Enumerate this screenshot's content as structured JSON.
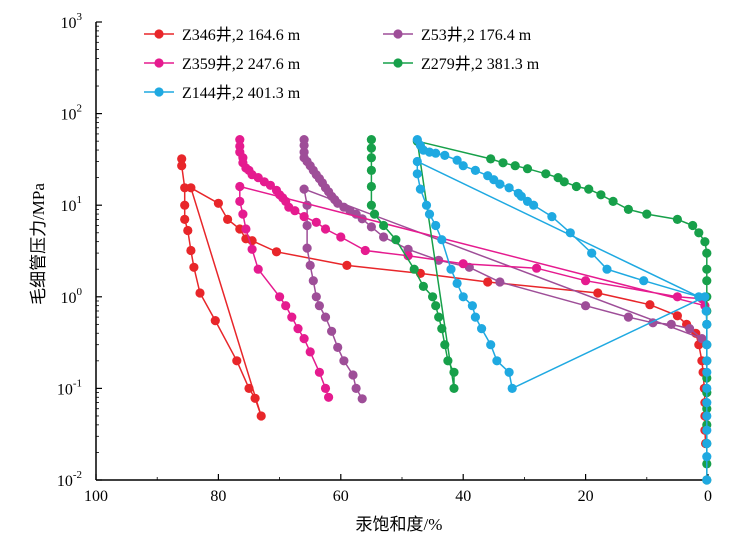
{
  "chart_data": {
    "type": "scatter",
    "xlabel": "汞饱和度/%",
    "ylabel": "毛细管压力/MPa",
    "xlim": [
      100,
      0
    ],
    "ylim": [
      0.01,
      1000
    ],
    "yscale": "log",
    "x_reversed": true,
    "xticks": [
      "100",
      "80",
      "60",
      "40",
      "20",
      "0"
    ],
    "yticks": [
      {
        "base": "10",
        "exp": "-2"
      },
      {
        "base": "10",
        "exp": "-1"
      },
      {
        "base": "10",
        "exp": "0"
      },
      {
        "base": "10",
        "exp": "1"
      },
      {
        "base": "10",
        "exp": "2"
      },
      {
        "base": "10",
        "exp": "3"
      }
    ],
    "legend_position": "top",
    "series": [
      {
        "name": "Z346井,2 164.6 m",
        "color": "#e8262a",
        "points": [
          [
            86.0,
            32
          ],
          [
            86.0,
            27
          ],
          [
            85.5,
            15.5
          ],
          [
            85.5,
            10
          ],
          [
            85.5,
            7
          ],
          [
            85.0,
            5.3
          ],
          [
            84.5,
            3.2
          ],
          [
            84.0,
            2.1
          ],
          [
            83.0,
            1.1
          ],
          [
            80.5,
            0.55
          ],
          [
            77.0,
            0.2
          ],
          [
            75.0,
            0.1
          ],
          [
            74.0,
            0.078
          ],
          [
            73.0,
            0.05
          ],
          [
            84.5,
            15.5
          ],
          [
            80.0,
            10.5
          ],
          [
            78.5,
            7
          ],
          [
            76.5,
            5.5
          ],
          [
            75.5,
            4.3
          ],
          [
            74.5,
            4.1
          ],
          [
            70.5,
            3.1
          ],
          [
            59.0,
            2.2
          ],
          [
            47.0,
            1.8
          ],
          [
            36.0,
            1.45
          ],
          [
            18.0,
            1.1
          ],
          [
            9.5,
            0.82
          ],
          [
            5.0,
            0.62
          ],
          [
            3.5,
            0.5
          ],
          [
            2.0,
            0.4
          ],
          [
            1.5,
            0.3
          ],
          [
            1.0,
            0.2
          ],
          [
            0.8,
            0.15
          ],
          [
            0.6,
            0.1
          ],
          [
            0.5,
            0.07
          ],
          [
            0.5,
            0.05
          ],
          [
            0.5,
            0.035
          ],
          [
            0.4,
            0.025
          ]
        ]
      },
      {
        "name": "Z53井,2 176.4 m",
        "color": "#9e4e98",
        "points": [
          [
            66.0,
            52
          ],
          [
            66.0,
            45
          ],
          [
            66.0,
            38
          ],
          [
            66.0,
            33
          ],
          [
            65.5,
            30
          ],
          [
            65.0,
            27
          ],
          [
            64.5,
            24
          ],
          [
            64.0,
            21.5
          ],
          [
            63.5,
            19.5
          ],
          [
            63.0,
            17.5
          ],
          [
            62.5,
            15.5
          ],
          [
            62.0,
            14
          ],
          [
            61.5,
            12.5
          ],
          [
            61.0,
            11.5
          ],
          [
            60.5,
            10.5
          ],
          [
            59.5,
            9.5
          ],
          [
            58.5,
            8.7
          ],
          [
            57.5,
            8
          ],
          [
            56.5,
            7.1
          ],
          [
            55.0,
            5.8
          ],
          [
            53.0,
            4.5
          ],
          [
            49.0,
            3.3
          ],
          [
            44.0,
            2.5
          ],
          [
            39.0,
            2.1
          ],
          [
            34.0,
            1.45
          ],
          [
            20.0,
            0.8
          ],
          [
            13.0,
            0.6
          ],
          [
            9.0,
            0.52
          ],
          [
            6.0,
            0.5
          ],
          [
            3.0,
            0.45
          ],
          [
            1.0,
            0.35
          ],
          [
            66.0,
            15
          ],
          [
            65.5,
            10
          ],
          [
            65.5,
            6
          ],
          [
            65.5,
            3.4
          ],
          [
            65.0,
            2.2
          ],
          [
            64.5,
            1.5
          ],
          [
            64.0,
            1.0
          ],
          [
            63.5,
            0.8
          ],
          [
            62.5,
            0.6
          ],
          [
            61.5,
            0.42
          ],
          [
            60.5,
            0.28
          ],
          [
            59.5,
            0.2
          ],
          [
            58.0,
            0.14
          ],
          [
            57.5,
            0.1
          ],
          [
            56.5,
            0.077
          ]
        ]
      },
      {
        "name": "Z359井,2 247.6 m",
        "color": "#e51b8f",
        "points": [
          [
            76.5,
            52
          ],
          [
            76.5,
            44
          ],
          [
            76.5,
            38
          ],
          [
            76.0,
            33
          ],
          [
            76.0,
            29
          ],
          [
            75.5,
            25.5
          ],
          [
            75.0,
            24
          ],
          [
            74.5,
            21.5
          ],
          [
            73.5,
            20
          ],
          [
            72.5,
            18
          ],
          [
            71.5,
            16.5
          ],
          [
            70.5,
            14.5
          ],
          [
            70.0,
            13
          ],
          [
            69.5,
            12
          ],
          [
            69.0,
            11
          ],
          [
            68.5,
            9.5
          ],
          [
            67.5,
            8.7
          ],
          [
            66.0,
            7.5
          ],
          [
            64.0,
            6.5
          ],
          [
            62.5,
            5.5
          ],
          [
            60.0,
            4.5
          ],
          [
            56.0,
            3.2
          ],
          [
            49.0,
            2.8
          ],
          [
            40.0,
            2.3
          ],
          [
            28.0,
            2.05
          ],
          [
            20.0,
            1.5
          ],
          [
            5.0,
            1.0
          ],
          [
            1.0,
            0.95
          ],
          [
            0.5,
            0.8
          ],
          [
            76.5,
            16
          ],
          [
            76.5,
            11
          ],
          [
            76.0,
            8
          ],
          [
            75.5,
            5.5
          ],
          [
            74.5,
            3.3
          ],
          [
            73.5,
            2.0
          ],
          [
            70.0,
            1.0
          ],
          [
            69.0,
            0.8
          ],
          [
            68.0,
            0.6
          ],
          [
            67.0,
            0.45
          ],
          [
            66.0,
            0.35
          ],
          [
            65.0,
            0.25
          ],
          [
            63.5,
            0.15
          ],
          [
            62.5,
            0.1
          ],
          [
            62.0,
            0.08
          ]
        ]
      },
      {
        "name": "Z279井,2 381.3 m",
        "color": "#17a04a",
        "points": [
          [
            55.0,
            52
          ],
          [
            55.0,
            42
          ],
          [
            55.0,
            33
          ],
          [
            55.0,
            24
          ],
          [
            55.0,
            16
          ],
          [
            55.0,
            10
          ],
          [
            54.5,
            8
          ],
          [
            53.0,
            6
          ],
          [
            51.0,
            4.2
          ],
          [
            48.0,
            2.0
          ],
          [
            46.5,
            1.3
          ],
          [
            45.0,
            1.0
          ],
          [
            44.5,
            0.8
          ],
          [
            44.0,
            0.6
          ],
          [
            43.5,
            0.45
          ],
          [
            43.0,
            0.3
          ],
          [
            42.5,
            0.2
          ],
          [
            41.5,
            0.15
          ],
          [
            41.5,
            0.1
          ],
          [
            47.5,
            50
          ],
          [
            35.5,
            32
          ],
          [
            33.5,
            29
          ],
          [
            31.5,
            27
          ],
          [
            29.5,
            25
          ],
          [
            26.5,
            22
          ],
          [
            24.5,
            20
          ],
          [
            23.5,
            18
          ],
          [
            21.5,
            16
          ],
          [
            19.5,
            15
          ],
          [
            17.5,
            13
          ],
          [
            15.5,
            11
          ],
          [
            13.0,
            9
          ],
          [
            10.0,
            8
          ],
          [
            5.0,
            7
          ],
          [
            2.5,
            6
          ],
          [
            1.5,
            5
          ],
          [
            0.5,
            4
          ],
          [
            0.2,
            3.0
          ],
          [
            0.2,
            2.0
          ],
          [
            0.2,
            1.5
          ],
          [
            0.2,
            1.0
          ],
          [
            0.2,
            0.7
          ],
          [
            0.2,
            0.5
          ],
          [
            0.2,
            0.3
          ],
          [
            0.2,
            0.2
          ],
          [
            0.2,
            0.13
          ],
          [
            0.2,
            0.09
          ],
          [
            0.2,
            0.06
          ],
          [
            0.2,
            0.04
          ],
          [
            0.2,
            0.025
          ],
          [
            0.2,
            0.015
          ],
          [
            0.2,
            0.01
          ]
        ]
      },
      {
        "name": "Z144井,2 401.3 m",
        "color": "#1fa9e1",
        "points": [
          [
            47.5,
            52
          ],
          [
            47.0,
            45
          ],
          [
            46.5,
            40
          ],
          [
            45.5,
            38
          ],
          [
            44.5,
            37
          ],
          [
            43.0,
            35
          ],
          [
            41.0,
            31
          ],
          [
            40.0,
            27
          ],
          [
            38.0,
            24
          ],
          [
            36.0,
            21
          ],
          [
            35.0,
            19
          ],
          [
            34.0,
            17
          ],
          [
            32.5,
            15.5
          ],
          [
            31.0,
            13.5
          ],
          [
            30.5,
            12.5
          ],
          [
            29.5,
            11
          ],
          [
            28.5,
            10
          ],
          [
            25.5,
            7.5
          ],
          [
            22.5,
            5
          ],
          [
            19.0,
            3
          ],
          [
            16.5,
            2.0
          ],
          [
            10.5,
            1.5
          ],
          [
            1.5,
            1.0
          ],
          [
            47.5,
            30
          ],
          [
            47.5,
            22
          ],
          [
            47.0,
            15
          ],
          [
            46.0,
            10
          ],
          [
            45.5,
            8
          ],
          [
            44.5,
            6
          ],
          [
            43.5,
            4.2
          ],
          [
            42.0,
            2.0
          ],
          [
            41.0,
            1.4
          ],
          [
            40.0,
            1.0
          ],
          [
            38.5,
            0.8
          ],
          [
            38.0,
            0.6
          ],
          [
            37.0,
            0.45
          ],
          [
            35.5,
            0.3
          ],
          [
            34.5,
            0.2
          ],
          [
            32.5,
            0.15
          ],
          [
            32.0,
            0.1
          ],
          [
            0.5,
            1.0
          ],
          [
            0.3,
            0.7
          ],
          [
            0.2,
            0.5
          ],
          [
            0.2,
            0.3
          ],
          [
            0.2,
            0.2
          ],
          [
            0.2,
            0.15
          ],
          [
            0.2,
            0.1
          ],
          [
            0.2,
            0.07
          ],
          [
            0.2,
            0.05
          ],
          [
            0.2,
            0.035
          ],
          [
            0.2,
            0.025
          ],
          [
            0.2,
            0.018
          ],
          [
            0.2,
            0.01
          ]
        ]
      }
    ]
  }
}
